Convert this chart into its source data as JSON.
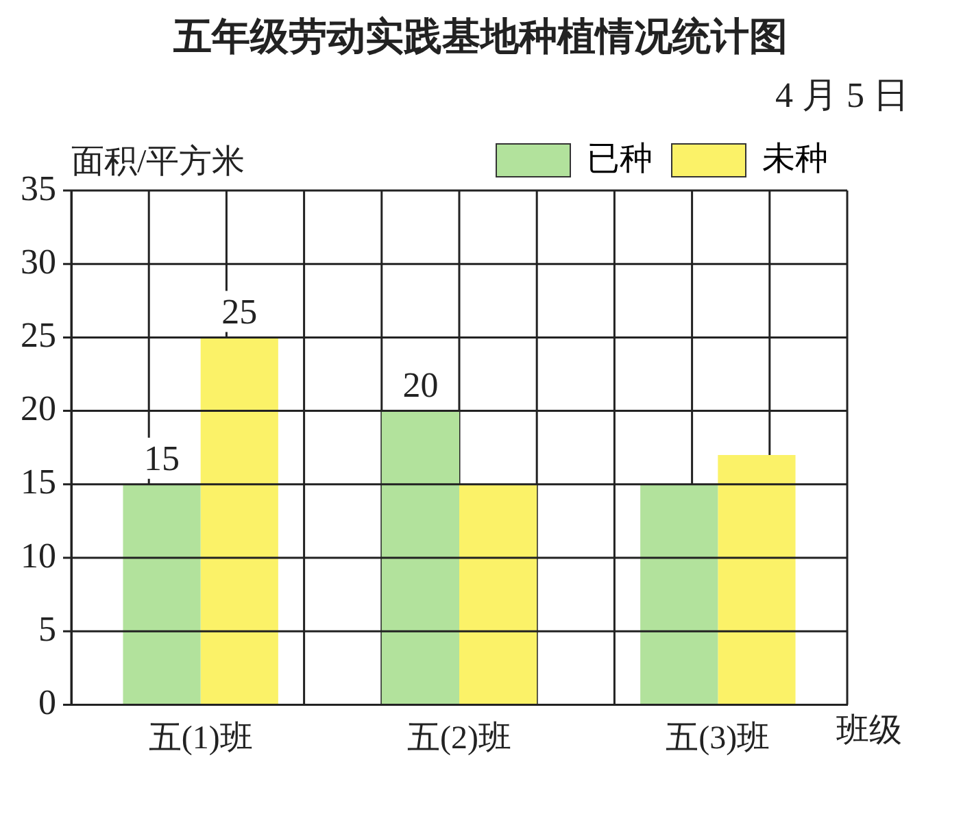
{
  "chart_data": {
    "type": "bar",
    "title": "五年级劳动实践基地种植情况统计图",
    "subtitle": "4 月 5 日",
    "ylabel": "面积/平方米",
    "xlabel": "班级",
    "categories": [
      "五(1)班",
      "五(2)班",
      "五(3)班"
    ],
    "series": [
      {
        "name": "已种",
        "color": "#b2e29c",
        "values": [
          15,
          20,
          15
        ],
        "value_labels": [
          "15",
          "20",
          null
        ]
      },
      {
        "name": "未种",
        "color": "#fbf268",
        "values": [
          25,
          15,
          17
        ],
        "value_labels": [
          "25",
          null,
          null
        ]
      }
    ],
    "ylim": [
      0,
      35
    ],
    "yticks": [
      0,
      5,
      10,
      15,
      20,
      25,
      30,
      35
    ],
    "grid": true,
    "legend": "top right"
  }
}
